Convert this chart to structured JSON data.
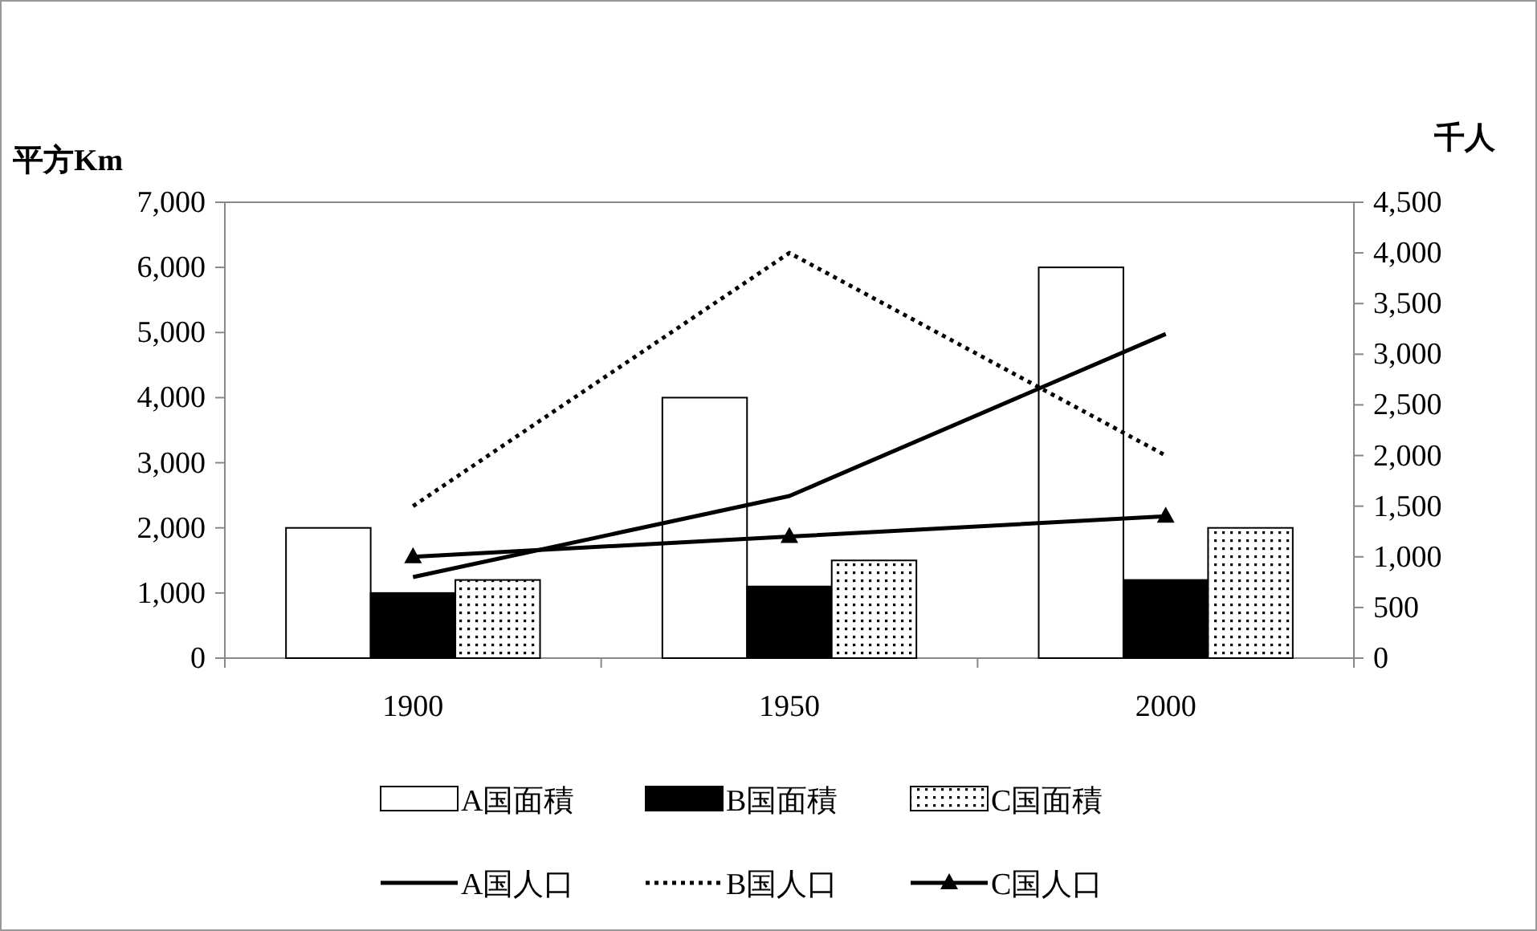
{
  "chart_data": {
    "type": "bar",
    "ylabel": "平方Km",
    "y2label": "千人",
    "categories": [
      "1900",
      "1950",
      "2000"
    ],
    "ylim": [
      0,
      7000
    ],
    "yticks": [
      0,
      {
        "value": 1000,
        "label": "1,000"
      },
      {
        "value": 2000,
        "label": "2,000"
      },
      {
        "value": 3000,
        "label": "3,000"
      },
      {
        "value": 4000,
        "label": "4,000"
      },
      {
        "value": 5000,
        "label": "5,000"
      },
      {
        "value": 6000,
        "label": "6,000"
      },
      {
        "value": 7000,
        "label": "7,000"
      }
    ],
    "y2lim": [
      0,
      4500
    ],
    "y2ticks": [
      0,
      500,
      {
        "value": 1000,
        "label": "1,000"
      },
      {
        "value": 1500,
        "label": "1,500"
      },
      {
        "value": 2000,
        "label": "2,000"
      },
      {
        "value": 2500,
        "label": "2,500"
      },
      {
        "value": 3000,
        "label": "3,000"
      },
      {
        "value": 3500,
        "label": "3,500"
      },
      {
        "value": 4000,
        "label": "4,000"
      },
      {
        "value": 4500,
        "label": "4,500"
      }
    ],
    "grid": false,
    "legend": "bottom",
    "series": [
      {
        "name": "A国面積",
        "color": "#ffffff",
        "values": [
          2000,
          4000,
          6000
        ]
      },
      {
        "name": "B国面積",
        "color": "#000000",
        "values": [
          1000,
          1100,
          1200
        ]
      },
      {
        "name": "C国面積",
        "color": "#000000",
        "values": [
          1200,
          1500,
          2000
        ]
      },
      {
        "name": "A国人口",
        "type": "line",
        "axis": "y2",
        "color": "#000000",
        "line_style": "solid",
        "marker": "none",
        "values": [
          800,
          1600,
          3200
        ]
      },
      {
        "name": "B国人口",
        "type": "line",
        "axis": "y2",
        "color": "#000000",
        "line_style": "dotted",
        "marker": "none",
        "values": [
          1500,
          4000,
          2000
        ]
      },
      {
        "name": "C国人口",
        "type": "line",
        "axis": "y2",
        "color": "#000000",
        "line_style": "solid",
        "marker": "triangle",
        "values": [
          1000,
          1200,
          1400
        ]
      }
    ]
  }
}
